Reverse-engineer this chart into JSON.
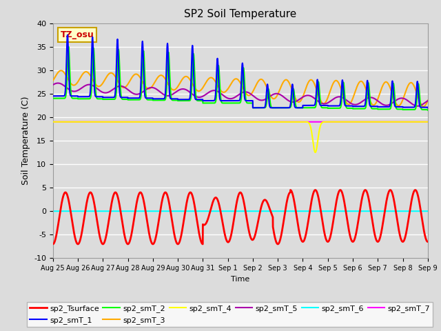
{
  "title": "SP2 Soil Temperature",
  "ylabel": "Soil Temperature (C)",
  "xlabel": "Time",
  "ylim": [
    -10,
    40
  ],
  "bg_color": "#dcdcdc",
  "plot_bg": "#dcdcdc",
  "tz_label": "TZ_osu",
  "tz_box_color": "#ffffc8",
  "tz_border_color": "#c8a000",
  "tz_text_color": "#cc0000",
  "x_ticks": [
    "Aug 25",
    "Aug 26",
    "Aug 27",
    "Aug 28",
    "Aug 29",
    "Aug 30",
    "Aug 31",
    "Sep 1",
    "Sep 2",
    "Sep 3",
    "Sep 4",
    "Sep 5",
    "Sep 6",
    "Sep 7",
    "Sep 8",
    "Sep 9"
  ],
  "n_days": 15,
  "series_colors": {
    "sp2_Tsurface": "#ff0000",
    "sp2_smT_1": "#0000ff",
    "sp2_smT_2": "#00ff00",
    "sp2_smT_3": "#ffaa00",
    "sp2_smT_4": "#ffff00",
    "sp2_smT_5": "#aa00aa",
    "sp2_smT_6": "#00ffff",
    "sp2_smT_7": "#ff00ff"
  }
}
